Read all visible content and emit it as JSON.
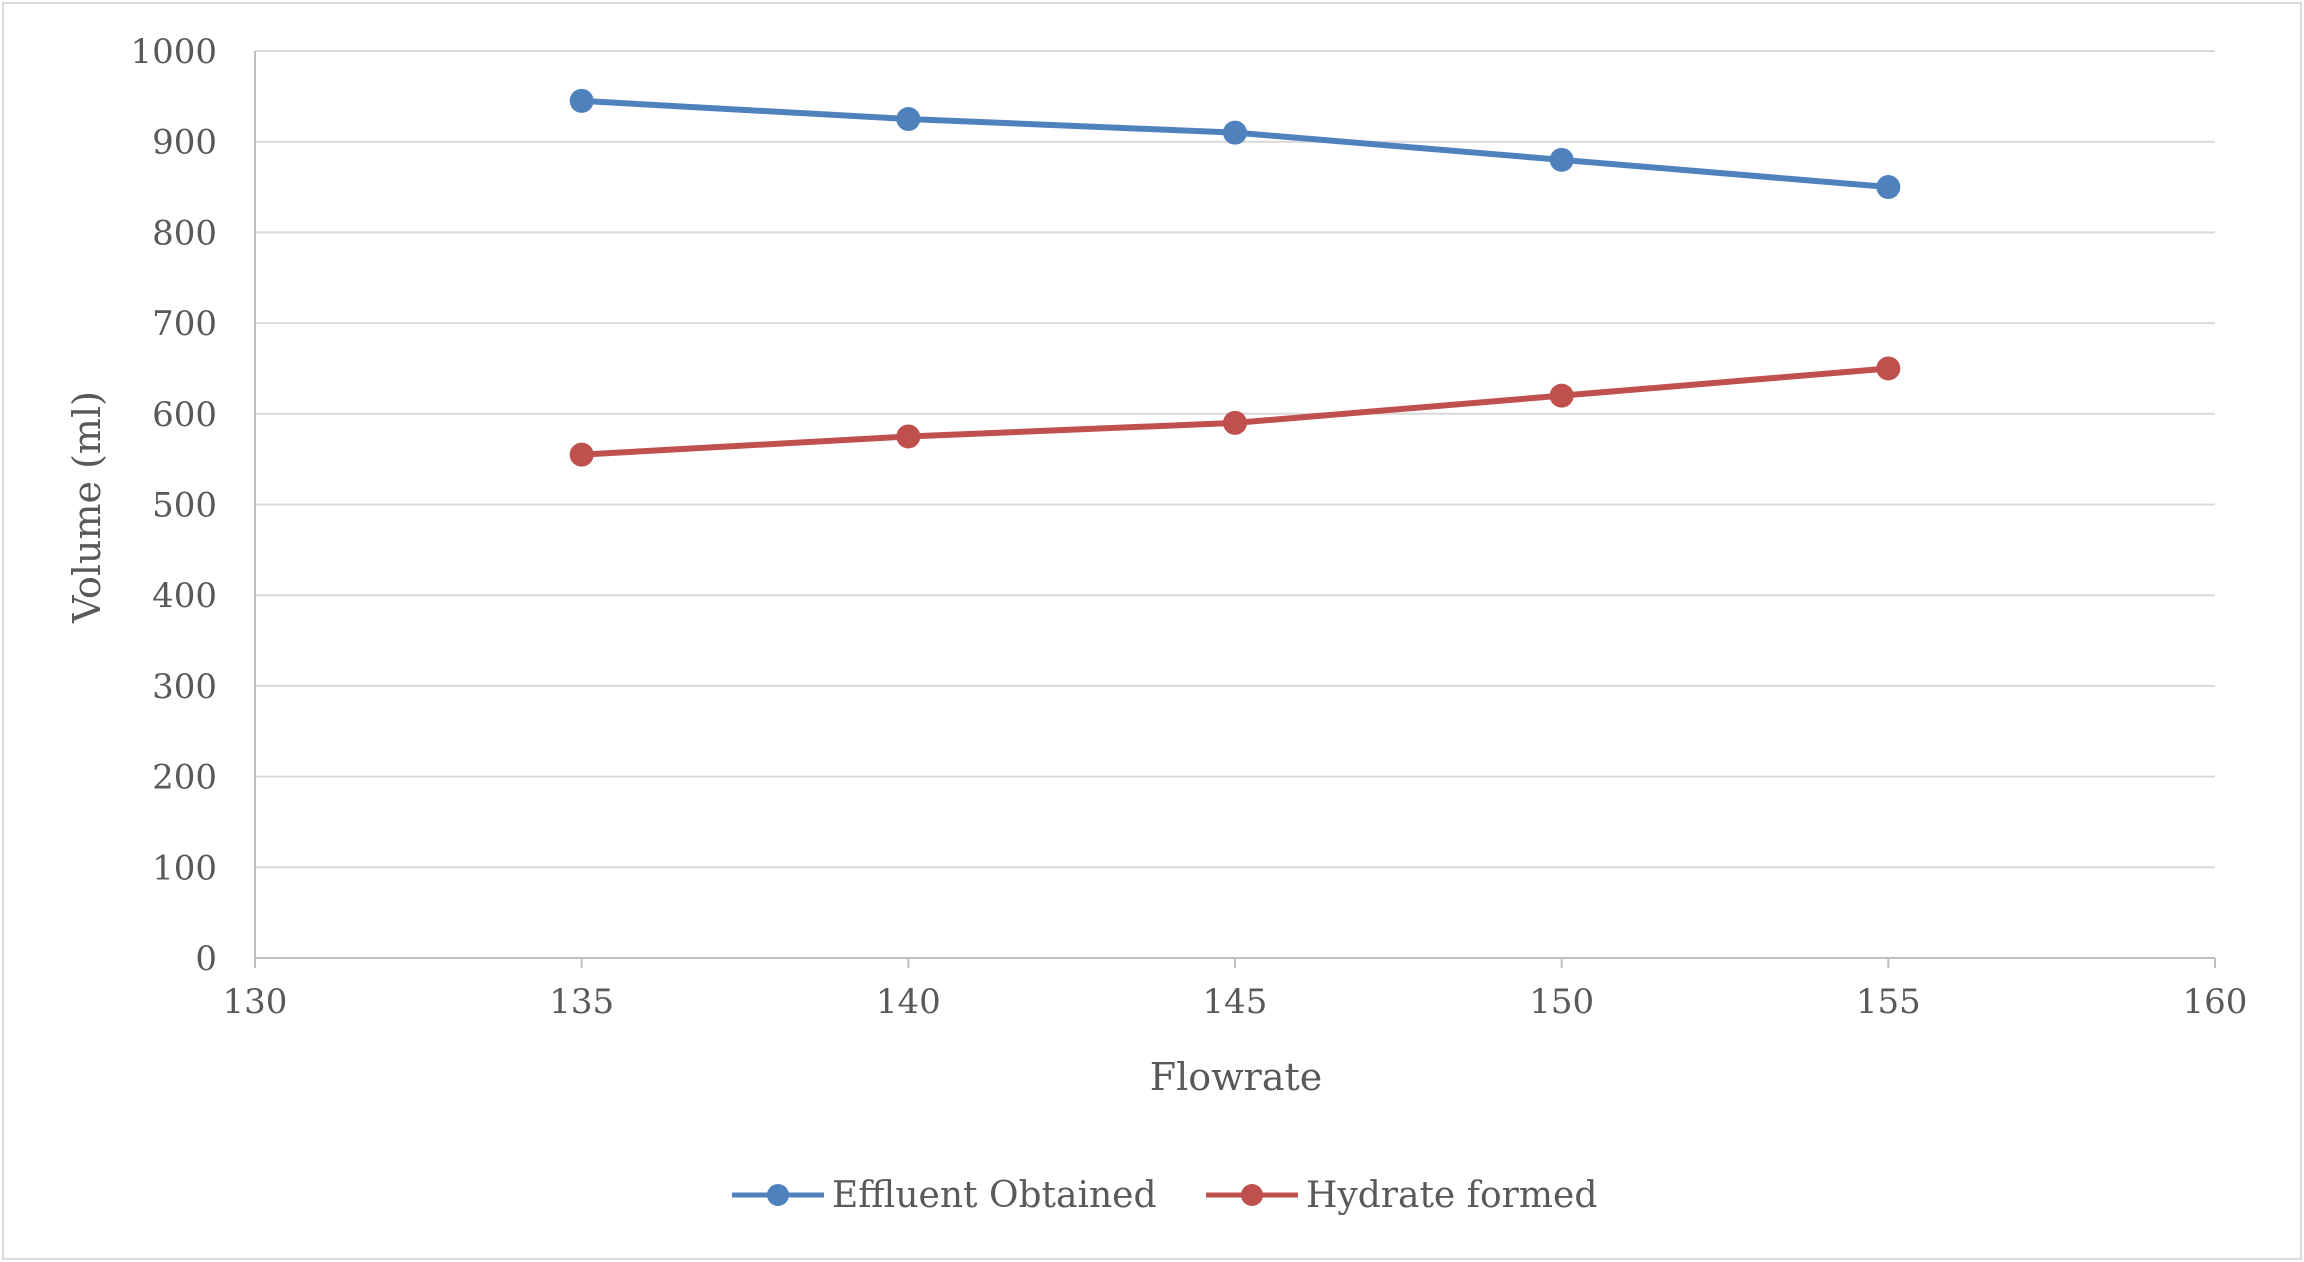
{
  "chart_data": {
    "type": "line",
    "title": "",
    "xlabel": "Flowrate",
    "ylabel": "Volume (ml)",
    "xlim": [
      130,
      160
    ],
    "ylim": [
      0,
      1000
    ],
    "x_ticks": [
      130,
      135,
      140,
      145,
      150,
      155,
      160
    ],
    "y_ticks": [
      0,
      100,
      200,
      300,
      400,
      500,
      600,
      700,
      800,
      900,
      1000
    ],
    "grid": "horizontal",
    "legend_position": "bottom",
    "x": [
      135,
      140,
      145,
      150,
      155
    ],
    "series": [
      {
        "name": "Effluent Obtained",
        "color": "#4f81bd",
        "values": [
          945,
          925,
          910,
          880,
          850
        ]
      },
      {
        "name": "Hydrate formed",
        "color": "#c0504d",
        "values": [
          555,
          575,
          590,
          620,
          650
        ]
      }
    ]
  }
}
